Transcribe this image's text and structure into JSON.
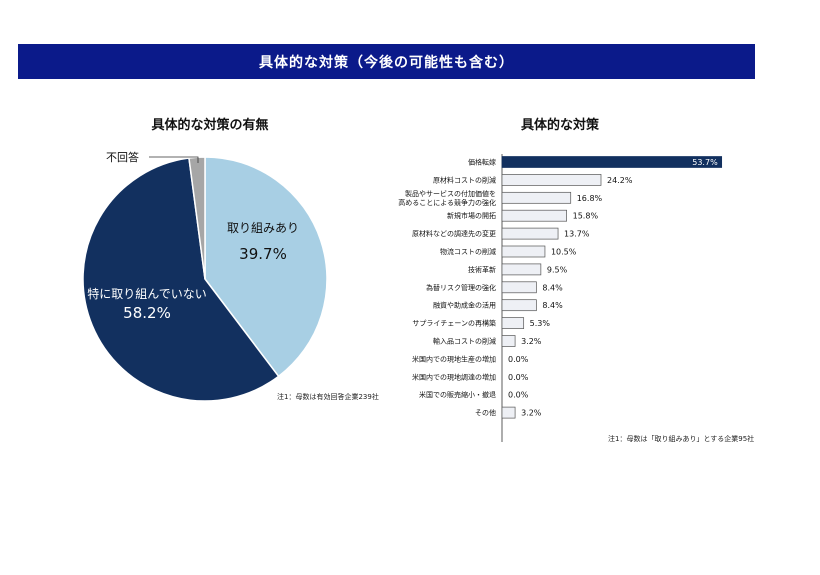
{
  "banner": {
    "title": "具体的な対策（今後の可能性も含む）"
  },
  "pie_chart": {
    "title": "具体的な対策の有無",
    "note": "注1：母数は有効回答企業239社"
  },
  "bar_chart": {
    "title": "具体的な対策",
    "note": "注1：母数は「取り組みあり」とする企業95社"
  },
  "chart_data": [
    {
      "type": "pie",
      "title": "具体的な対策の有無",
      "slices": [
        {
          "label": "取り組みあり",
          "value": 39.7,
          "value_label": "39.7%",
          "color": "#a8cfe4"
        },
        {
          "label": "特に取り組んでいない",
          "value": 58.2,
          "value_label": "58.2%",
          "color": "#12305f"
        },
        {
          "label": "不回答",
          "value": 2.1,
          "value_label": "",
          "color": "#a6a6a6"
        }
      ]
    },
    {
      "type": "bar",
      "orientation": "horizontal",
      "title": "具体的な対策",
      "categories": [
        [
          "価格転嫁"
        ],
        [
          "原材料コストの削減"
        ],
        [
          "製品やサービスの付加価値を",
          "高めることによる競争力の強化"
        ],
        [
          "新規市場の開拓"
        ],
        [
          "原材料などの調達先の変更"
        ],
        [
          "物流コストの削減"
        ],
        [
          "技術革新"
        ],
        [
          "為替リスク管理の強化"
        ],
        [
          "融資や助成金の活用"
        ],
        [
          "サプライチェーンの再構築"
        ],
        [
          "輸入品コストの削減"
        ],
        [
          "米国内での現地生産の増加"
        ],
        [
          "米国内での現地調達の増加"
        ],
        [
          "米国での販売縮小・撤退"
        ],
        [
          "その他"
        ]
      ],
      "values": [
        53.7,
        24.2,
        16.8,
        15.8,
        13.7,
        10.5,
        9.5,
        8.4,
        8.4,
        5.3,
        3.2,
        0.0,
        0.0,
        0.0,
        3.2
      ],
      "value_labels": [
        "53.7%",
        "24.2%",
        "16.8%",
        "15.8%",
        "13.7%",
        "10.5%",
        "9.5%",
        "8.4%",
        "8.4%",
        "5.3%",
        "3.2%",
        "0.0%",
        "0.0%",
        "0.0%",
        "3.2%"
      ],
      "highlight_color": "#12305f",
      "bar_color": "#eef0f5",
      "xlim": [
        0,
        55
      ]
    }
  ]
}
